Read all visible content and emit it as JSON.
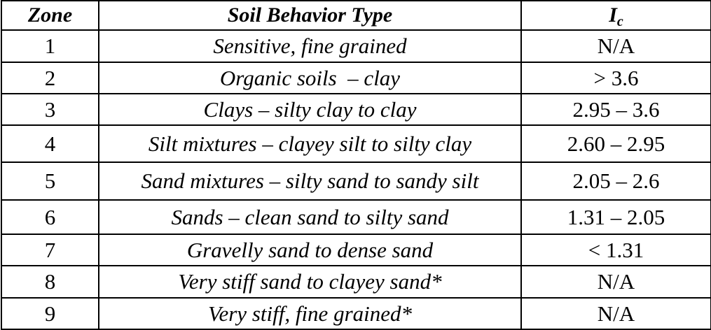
{
  "table": {
    "headers": {
      "zone": "Zone",
      "soil_behavior_type": "Soil Behavior Type",
      "ic_main": "I",
      "ic_sub": "c"
    },
    "rows": [
      {
        "zone": "1",
        "type": "Sensitive, fine grained",
        "ic": "N/A"
      },
      {
        "zone": "2",
        "type": "Organic soils  – clay",
        "ic": "> 3.6"
      },
      {
        "zone": "3",
        "type": "Clays – silty clay to clay",
        "ic": "2.95 – 3.6"
      },
      {
        "zone": "4",
        "type": "Silt mixtures – clayey silt to silty clay",
        "ic": "2.60 – 2.95"
      },
      {
        "zone": "5",
        "type": "Sand mixtures – silty sand to sandy silt",
        "ic": "2.05 – 2.6"
      },
      {
        "zone": "6",
        "type": "Sands – clean sand to silty sand",
        "ic": "1.31 – 2.05"
      },
      {
        "zone": "7",
        "type": "Gravelly sand to dense sand",
        "ic": "< 1.31"
      },
      {
        "zone": "8",
        "type": "Very stiff sand to clayey sand*",
        "ic": "N/A"
      },
      {
        "zone": "9",
        "type": "Very stiff, fine grained*",
        "ic": "N/A"
      }
    ]
  }
}
